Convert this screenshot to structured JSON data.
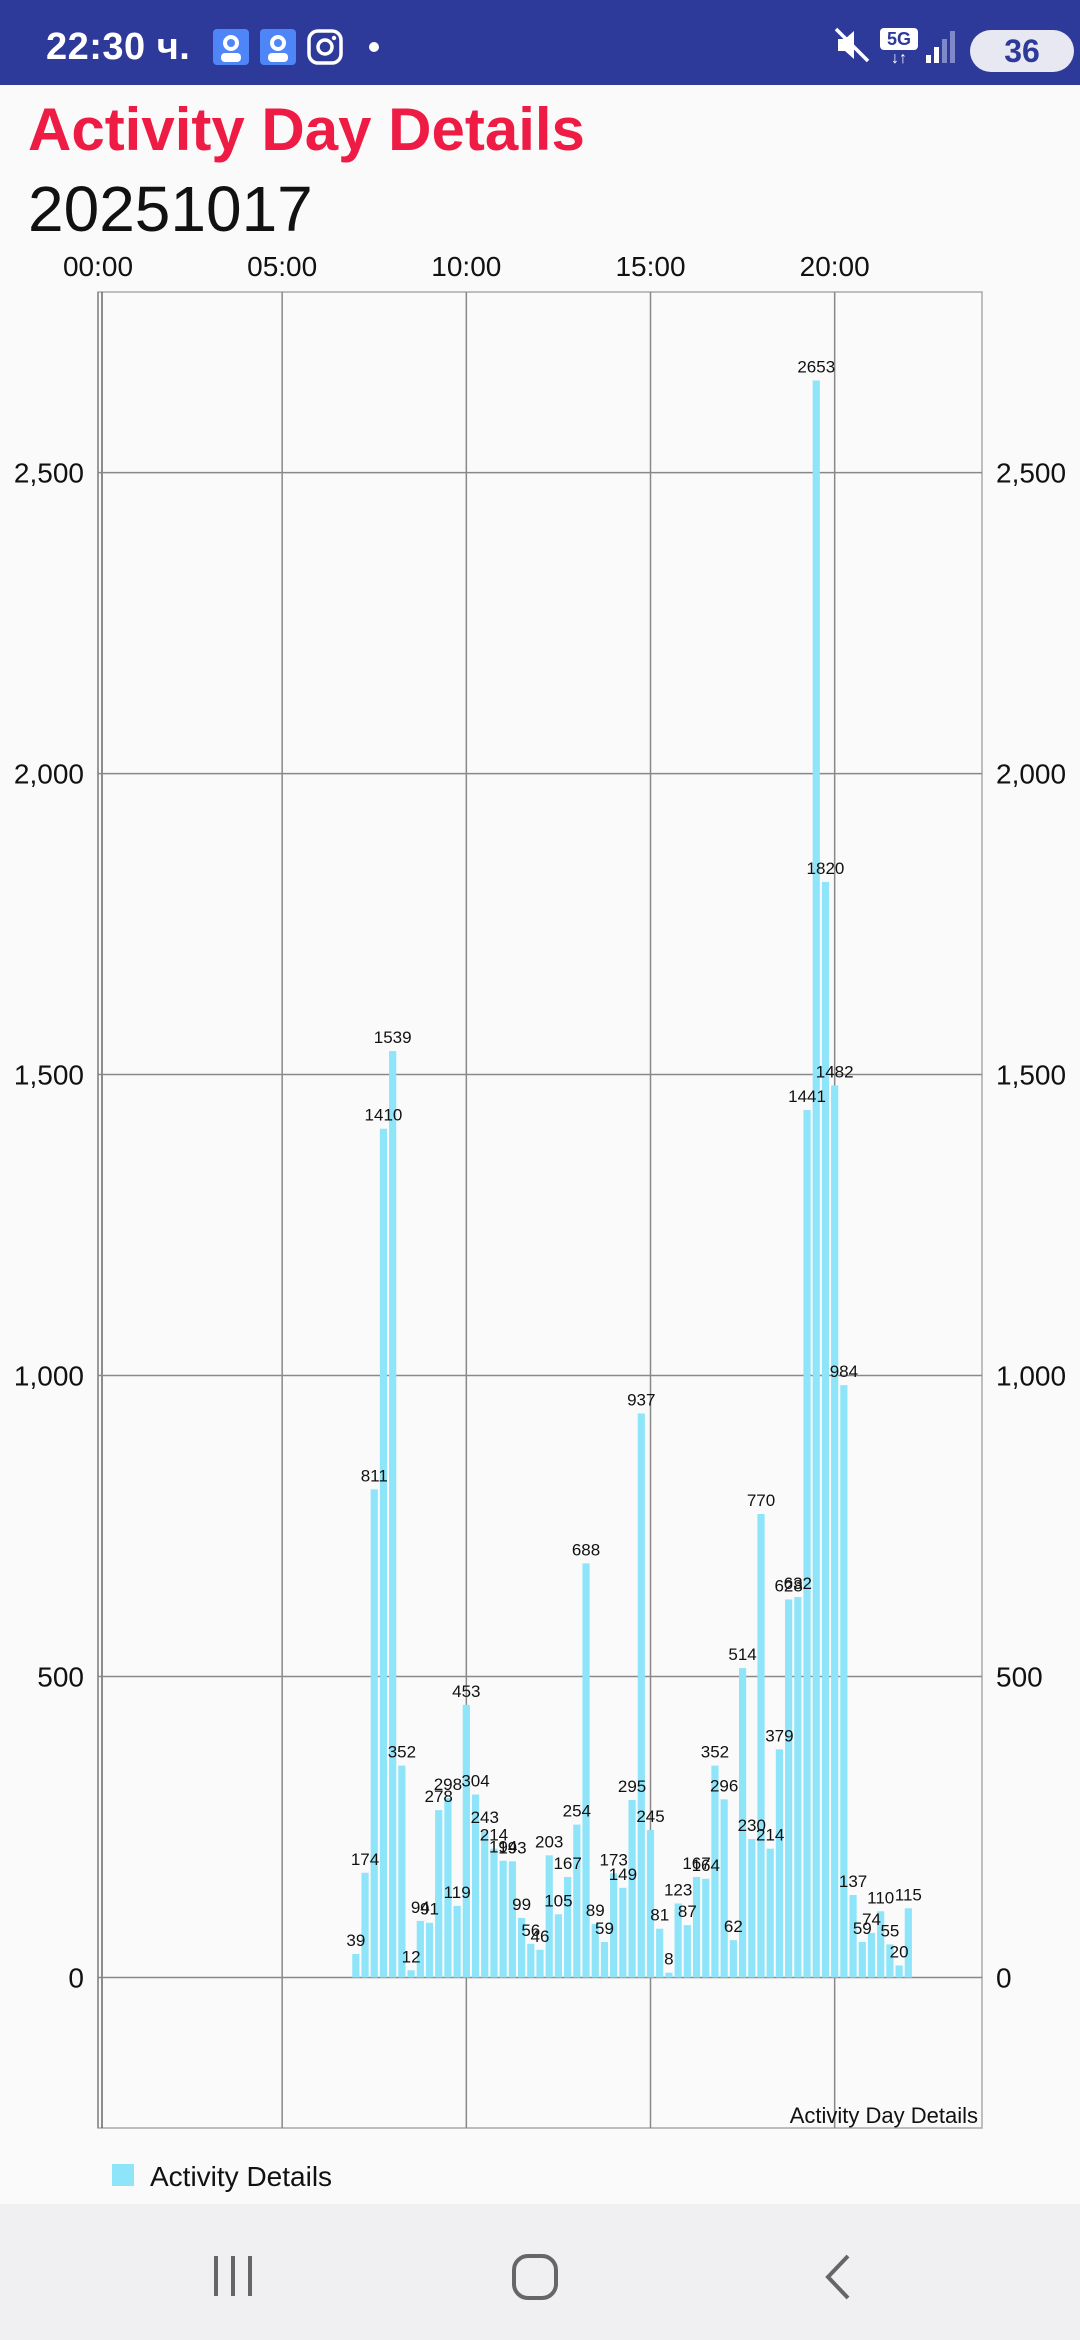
{
  "status_bar": {
    "time": "22:30 ч.",
    "network": "5G",
    "battery": "36",
    "icons": [
      "profile-badge-icon",
      "profile-badge-icon",
      "instagram-icon",
      "dot-icon",
      "mute-icon",
      "5g-icon",
      "signal-icon",
      "battery-icon"
    ]
  },
  "header": {
    "title": "Activity Day Details",
    "date": "20251017"
  },
  "colors": {
    "status_bar": "#2e3a9a",
    "title": "#ee1c45",
    "bar": "#8ee4f8",
    "grid": "#888888"
  },
  "chart_data": {
    "type": "bar",
    "x_axis_position": "top",
    "x_tick_labels": [
      "00:00",
      "05:00",
      "10:00",
      "15:00",
      "20:00"
    ],
    "x_tick_hours": [
      0,
      5,
      10,
      15,
      20
    ],
    "xlim_hours": [
      0,
      24
    ],
    "ylim": [
      -250,
      2800
    ],
    "y_tick_values": [
      0,
      500,
      1000,
      1500,
      2000,
      2500
    ],
    "y_tick_labels": [
      "0",
      "500",
      "1,000",
      "1,500",
      "2,000",
      "2,500"
    ],
    "description": "Activity Day Details",
    "legend": {
      "label": "Activity Details",
      "position": "bottom-left"
    },
    "grid": true,
    "interval_minutes": 15,
    "series": [
      {
        "name": "Activity Details",
        "start_hour": 7.0,
        "values": [
          39,
          174,
          811,
          1410,
          1539,
          352,
          12,
          94,
          91,
          278,
          298,
          119,
          453,
          304,
          243,
          214,
          194,
          193,
          99,
          56,
          46,
          203,
          105,
          167,
          254,
          688,
          89,
          59,
          173,
          149,
          295,
          937,
          245,
          81,
          8,
          123,
          87,
          167,
          164,
          352,
          296,
          62,
          514,
          230,
          770,
          214,
          379,
          628,
          632,
          1441,
          2653,
          1820,
          1482,
          984,
          137,
          59,
          74,
          110,
          55,
          20,
          115
        ]
      }
    ]
  }
}
